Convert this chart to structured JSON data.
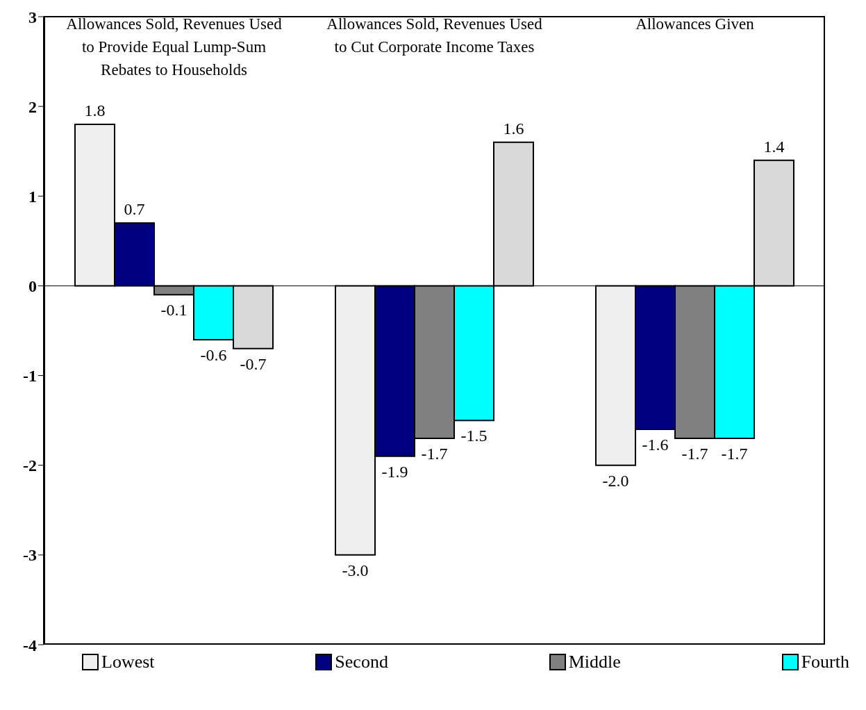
{
  "chart_data": {
    "type": "bar",
    "categories": [
      "Allowances Sold, Revenues Used to Provide Equal Lump-Sum Rebates to Households",
      "Allowances Sold, Revenues Used to Cut Corporate Income Taxes",
      "Allowances Given"
    ],
    "series": [
      {
        "name": "Lowest",
        "color": "#eeeeee",
        "values": [
          1.8,
          -3.0,
          -2.0
        ],
        "value_labels": [
          "1.8",
          "-3.0",
          "-2.0"
        ]
      },
      {
        "name": "Second",
        "color": "#000080",
        "values": [
          0.7,
          -1.9,
          -1.6
        ],
        "value_labels": [
          "0.7",
          "-1.9",
          "-1.6"
        ]
      },
      {
        "name": "Middle",
        "color": "#808080",
        "values": [
          -0.1,
          -1.7,
          -1.7
        ],
        "value_labels": [
          "-0.1",
          "-1.7",
          "-1.7"
        ]
      },
      {
        "name": "Fourth",
        "color": "#00ffff",
        "values": [
          -0.6,
          -1.5,
          -1.7
        ],
        "value_labels": [
          "-0.6",
          "-1.5",
          "-1.7"
        ]
      },
      {
        "color": "#d9d9d9",
        "values": [
          -0.7,
          1.6,
          1.4
        ],
        "value_labels": [
          "-0.7",
          "1.6",
          "1.4"
        ]
      }
    ],
    "ylim": [
      -4,
      3
    ],
    "yticks": [
      -4,
      -3,
      -2,
      -1,
      0,
      1,
      2,
      3
    ],
    "ref_lines": [
      {
        "axis": "y",
        "value": 0
      }
    ],
    "legend": "bottom"
  }
}
